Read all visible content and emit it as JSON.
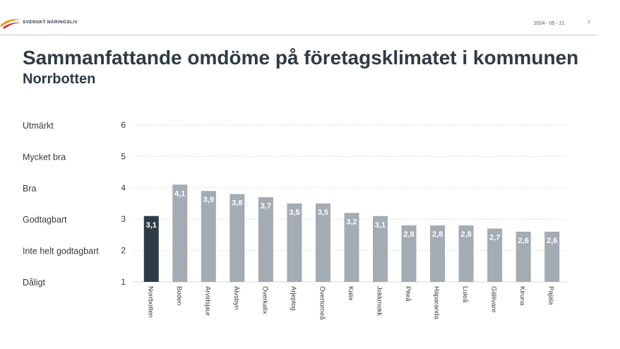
{
  "header": {
    "logo_text": "SVENSKT NÄRINGSLIV",
    "date": "2024 - 05 - 21",
    "page_number": "7"
  },
  "colors": {
    "highlight_bar": "#2e3c48",
    "other_bars": "#a3abb3",
    "grid": "#d9d9d9",
    "logo_orange": "#f29a1f",
    "logo_red": "#d8262c"
  },
  "icons": {
    "logo": "svenskt-naringsliv-logo-icon"
  },
  "chart_data": {
    "type": "bar",
    "title": "Sammanfattande omdöme på företagsklimatet i kommunen",
    "subtitle": "Norrbotten",
    "xlabel": "",
    "ylabel": "",
    "ylim": [
      1,
      6
    ],
    "yticks": [
      1,
      2,
      3,
      4,
      5,
      6
    ],
    "ytick_category_labels": [
      "Dåligt",
      "Inte helt godtagbart",
      "Godtagbart",
      "Bra",
      "Mycket bra",
      "Utmärkt"
    ],
    "grid": true,
    "categories": [
      "Norrbotten",
      "Boden",
      "Arvidsjaur",
      "Älvsbyn",
      "Överkalix",
      "Arjeplog",
      "Övertorneå",
      "Kalix",
      "Jokkmokk",
      "Piteå",
      "Haparanda",
      "Luleå",
      "Gällivare",
      "Kiruna",
      "Pajala"
    ],
    "values": [
      3.1,
      4.1,
      3.9,
      3.8,
      3.7,
      3.5,
      3.5,
      3.2,
      3.1,
      2.8,
      2.8,
      2.8,
      2.7,
      2.6,
      2.6
    ],
    "value_labels": [
      "3,1",
      "4,1",
      "3,9",
      "3,8",
      "3,7",
      "3,5",
      "3,5",
      "3,2",
      "3,1",
      "2,8",
      "2,8",
      "2,8",
      "2,7",
      "2,6",
      "2,6"
    ],
    "highlight_index": 0
  }
}
